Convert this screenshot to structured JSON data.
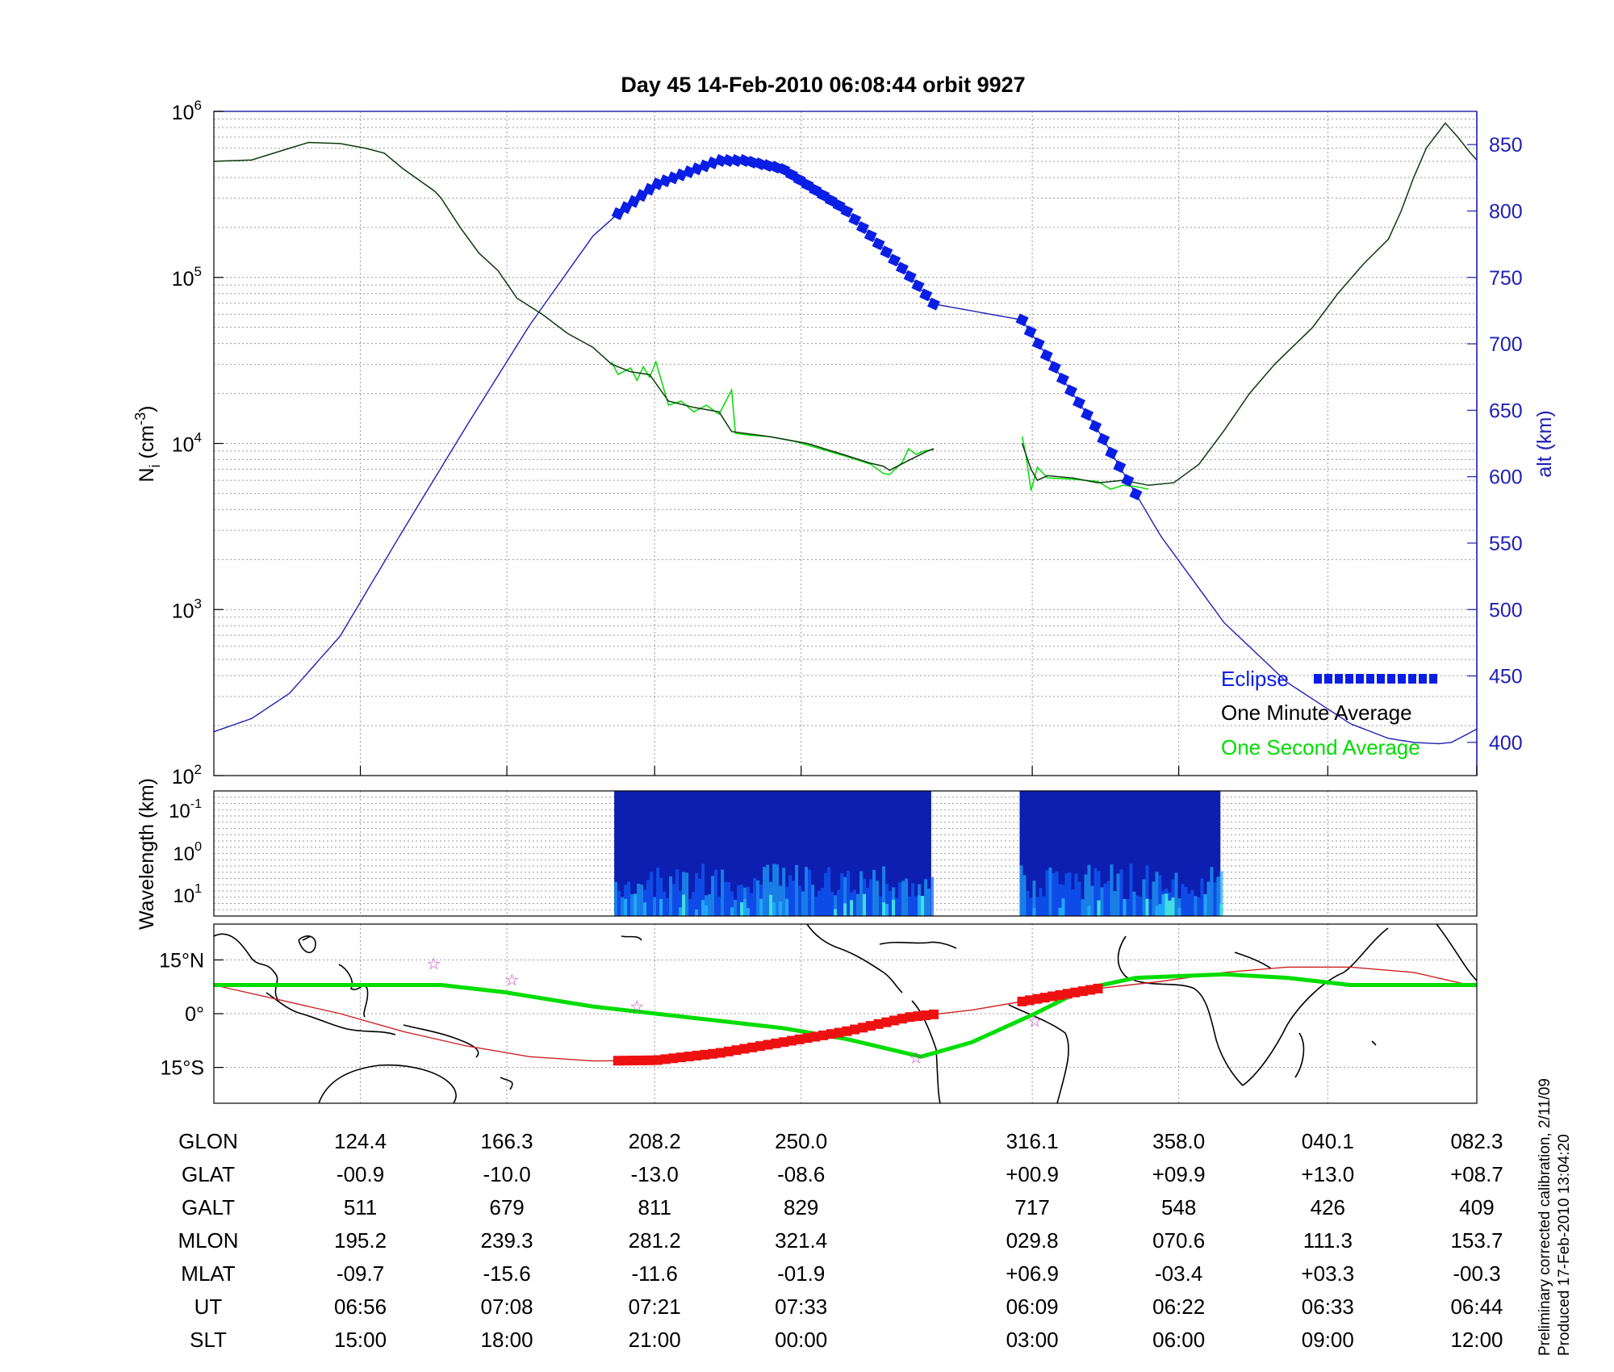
{
  "title": "Day 45  14-Feb-2010 06:08:44   orbit 9927",
  "colors": {
    "alt": "#1f1fb4",
    "avg_minute": "#000000",
    "avg_second": "#00dd00",
    "eclipse": "#0a1ee6",
    "track_eclipse": "#ee1111",
    "orbit_line": "#cc2222",
    "star": "#cc33cc",
    "grid": "#9a9a9a"
  },
  "chart_data": [
    {
      "id": "density",
      "type": "line",
      "ylabel_main": "N",
      "ylabel_sub": "i",
      "ylabel_rest": " (cm",
      "ylabel_sup": "-3",
      "ylabel_end": ")",
      "y_scale": "log",
      "ylim": [
        100,
        1000000
      ],
      "yticks": [
        {
          "base": "10",
          "exp": "2",
          "value": 100
        },
        {
          "base": "10",
          "exp": "3",
          "value": 1000
        },
        {
          "base": "10",
          "exp": "4",
          "value": 10000
        },
        {
          "base": "10",
          "exp": "5",
          "value": 100000
        },
        {
          "base": "10",
          "exp": "6",
          "value": 1000000
        }
      ],
      "y2label": "alt (km)",
      "y2lim": [
        375,
        875
      ],
      "y2ticks": [
        400,
        450,
        500,
        550,
        600,
        650,
        700,
        750,
        800,
        850
      ],
      "xlim": [
        0,
        1
      ],
      "xticks": [
        0.116,
        0.232,
        0.349,
        0.465,
        0.648,
        0.764,
        0.882,
        1.0
      ],
      "grid": true,
      "legend_position": "lower-right",
      "legend": [
        {
          "label": "Eclipse",
          "series": "eclipse",
          "color": "#0a1ee6"
        },
        {
          "label": "One Minute Average",
          "series": "avg_minute",
          "color": "#000000"
        },
        {
          "label": "One Second Average",
          "series": "avg_second",
          "color": "#00dd00"
        }
      ],
      "series": [
        {
          "name": "One Minute Average",
          "id": "avg_minute",
          "axis": "left",
          "segments": [
            [
              [
                0.0,
                500000
              ],
              [
                0.03,
                510000
              ],
              [
                0.06,
                600000
              ],
              [
                0.075,
                650000
              ],
              [
                0.1,
                640000
              ],
              [
                0.12,
                600000
              ],
              [
                0.135,
                560000
              ],
              [
                0.15,
                450000
              ],
              [
                0.175,
                330000
              ],
              [
                0.18,
                300000
              ],
              [
                0.195,
                200000
              ],
              [
                0.21,
                140000
              ],
              [
                0.225,
                110000
              ],
              [
                0.24,
                75000
              ],
              [
                0.26,
                60000
              ],
              [
                0.28,
                46000
              ],
              [
                0.3,
                38000
              ],
              [
                0.315,
                30000
              ],
              [
                0.33,
                27000
              ],
              [
                0.345,
                26000
              ],
              [
                0.36,
                18000
              ],
              [
                0.38,
                16500
              ],
              [
                0.4,
                15500
              ],
              [
                0.41,
                11800
              ],
              [
                0.44,
                11000
              ],
              [
                0.47,
                10000
              ],
              [
                0.5,
                8500
              ],
              [
                0.52,
                7600
              ],
              [
                0.53,
                7300
              ],
              [
                0.535,
                6900
              ],
              [
                0.55,
                7900
              ],
              [
                0.565,
                9000
              ],
              [
                0.57,
                9300
              ]
            ],
            [
              [
                0.64,
                10000
              ],
              [
                0.647,
                7000
              ],
              [
                0.652,
                6000
              ],
              [
                0.66,
                6400
              ],
              [
                0.68,
                6200
              ],
              [
                0.7,
                5800
              ],
              [
                0.72,
                6000
              ],
              [
                0.74,
                5600
              ],
              [
                0.76,
                5800
              ],
              [
                0.78,
                7500
              ],
              [
                0.8,
                12000
              ],
              [
                0.82,
                20000
              ],
              [
                0.84,
                30000
              ],
              [
                0.87,
                50000
              ],
              [
                0.89,
                80000
              ],
              [
                0.91,
                120000
              ],
              [
                0.93,
                170000
              ],
              [
                0.94,
                250000
              ],
              [
                0.95,
                400000
              ],
              [
                0.96,
                600000
              ],
              [
                0.975,
                850000
              ],
              [
                0.985,
                700000
              ],
              [
                0.995,
                560000
              ],
              [
                1.0,
                510000
              ]
            ]
          ]
        },
        {
          "name": "One Second Average",
          "id": "avg_second",
          "axis": "left",
          "segments": [
            [
              [
                0.315,
                31000
              ],
              [
                0.32,
                26000
              ],
              [
                0.33,
                28500
              ],
              [
                0.335,
                24000
              ],
              [
                0.34,
                29000
              ],
              [
                0.345,
                25000
              ],
              [
                0.35,
                31000
              ],
              [
                0.36,
                17000
              ],
              [
                0.37,
                18000
              ],
              [
                0.38,
                15500
              ],
              [
                0.39,
                17000
              ],
              [
                0.4,
                15000
              ],
              [
                0.41,
                21000
              ],
              [
                0.413,
                11500
              ],
              [
                0.425,
                11200
              ],
              [
                0.44,
                11000
              ],
              [
                0.46,
                10300
              ],
              [
                0.5,
                8400
              ],
              [
                0.52,
                7500
              ],
              [
                0.53,
                6600
              ],
              [
                0.535,
                6500
              ],
              [
                0.545,
                7700
              ],
              [
                0.55,
                9300
              ],
              [
                0.556,
                8600
              ],
              [
                0.562,
                9000
              ],
              [
                0.57,
                9200
              ]
            ],
            [
              [
                0.64,
                11000
              ],
              [
                0.643,
                8500
              ],
              [
                0.647,
                5200
              ],
              [
                0.652,
                7200
              ],
              [
                0.66,
                6200
              ],
              [
                0.68,
                6100
              ],
              [
                0.7,
                5900
              ],
              [
                0.71,
                5300
              ],
              [
                0.72,
                5600
              ],
              [
                0.73,
                5500
              ],
              [
                0.74,
                5300
              ]
            ]
          ]
        },
        {
          "name": "alt (km)",
          "id": "alt",
          "axis": "right",
          "x": [
            0.0,
            0.03,
            0.06,
            0.1,
            0.15,
            0.2,
            0.25,
            0.3,
            0.32,
            0.35,
            0.4,
            0.42,
            0.45,
            0.5,
            0.55,
            0.57,
            0.64,
            0.7,
            0.75,
            0.8,
            0.85,
            0.9,
            0.93,
            0.95,
            0.97,
            0.98,
            1.0
          ],
          "y": [
            408,
            418,
            437,
            480,
            560,
            638,
            714,
            781,
            798,
            820,
            838,
            838,
            832,
            801,
            752,
            730,
            718,
            635,
            555,
            490,
            445,
            414,
            403,
            400,
            399,
            400,
            410
          ]
        },
        {
          "name": "Eclipse",
          "id": "eclipse",
          "axis": "right",
          "style": "thick-dashed",
          "segments": [
            {
              "x_start": 0.32,
              "x_end": 0.57
            },
            {
              "x_start": 0.64,
              "x_end": 0.73
            }
          ],
          "legend_sample": true
        }
      ]
    },
    {
      "id": "spectrogram",
      "type": "heatmap",
      "ylabel": "Wavelength (km)",
      "yticks": [
        {
          "base": "10",
          "exp": "-1"
        },
        {
          "base": "10",
          "exp": "0"
        },
        {
          "base": "10",
          "exp": "1"
        }
      ],
      "blocks": [
        {
          "x_start": 0.317,
          "x_end": 0.568
        },
        {
          "x_start": 0.638,
          "x_end": 0.797
        }
      ],
      "colorscale": [
        "#0a1a8a",
        "#0a2fd0",
        "#1060ff",
        "#20a8ff",
        "#40e0e0",
        "#b0f060"
      ]
    },
    {
      "id": "map",
      "type": "line",
      "yticks": [
        {
          "label": "15°N",
          "value": 15
        },
        {
          "label": "0°",
          "value": 0
        },
        {
          "label": "15°S",
          "value": -15
        }
      ],
      "ylim": [
        -25,
        25
      ],
      "series": [
        {
          "id": "track_green",
          "x": [
            0.0,
            0.1,
            0.18,
            0.23,
            0.3,
            0.35,
            0.4,
            0.45,
            0.5,
            0.56,
            0.6,
            0.65,
            0.69,
            0.73,
            0.8,
            0.85,
            0.9,
            0.95,
            1.0
          ],
          "y": [
            8,
            8,
            8,
            6,
            2,
            0,
            -2,
            -4,
            -7,
            -12,
            -8,
            0,
            7,
            10,
            11,
            10,
            8,
            8,
            8
          ]
        },
        {
          "id": "orbit_line",
          "x": [
            0.0,
            0.05,
            0.1,
            0.15,
            0.2,
            0.25,
            0.3,
            0.35,
            0.4,
            0.45,
            0.5,
            0.55,
            0.6,
            0.65,
            0.7,
            0.75,
            0.8,
            0.85,
            0.9,
            0.95,
            1.0
          ],
          "y": [
            8,
            4,
            0,
            -5,
            -9,
            -12,
            -13.2,
            -13,
            -11,
            -8,
            -5,
            -1,
            1,
            4,
            7,
            9,
            11.5,
            13,
            13,
            11.5,
            7.5
          ]
        },
        {
          "id": "track_eclipse",
          "segments": [
            {
              "x_start": 0.32,
              "x_end": 0.57
            },
            {
              "x_start": 0.64,
              "x_end": 0.7
            }
          ]
        }
      ],
      "stars": [
        {
          "x": 0.174,
          "y": 14
        },
        {
          "x": 0.236,
          "y": 9.5
        },
        {
          "x": 0.335,
          "y": 2
        },
        {
          "x": 0.556,
          "y": -12.3
        },
        {
          "x": 0.65,
          "y": -2
        }
      ]
    }
  ],
  "table": {
    "rows": [
      {
        "label": "GLON",
        "values": [
          "124.4",
          "166.3",
          "208.2",
          "250.0",
          "316.1",
          "358.0",
          "040.1",
          "082.3"
        ]
      },
      {
        "label": "GLAT",
        "values": [
          "-00.9",
          "-10.0",
          "-13.0",
          "-08.6",
          "+00.9",
          "+09.9",
          "+13.0",
          "+08.7"
        ]
      },
      {
        "label": "GALT",
        "values": [
          "511",
          "679",
          "811",
          "829",
          "717",
          "548",
          "426",
          "409"
        ]
      },
      {
        "label": "MLON",
        "values": [
          "195.2",
          "239.3",
          "281.2",
          "321.4",
          "029.8",
          "070.6",
          "111.3",
          "153.7"
        ]
      },
      {
        "label": "MLAT",
        "values": [
          "-09.7",
          "-15.6",
          "-11.6",
          "-01.9",
          "+06.9",
          "-03.4",
          "+03.3",
          "-00.3"
        ]
      },
      {
        "label": "UT",
        "values": [
          "06:56",
          "07:08",
          "07:21",
          "07:33",
          "06:09",
          "06:22",
          "06:33",
          "06:44"
        ]
      },
      {
        "label": "SLT",
        "values": [
          "15:00",
          "18:00",
          "21:00",
          "00:00",
          "03:00",
          "06:00",
          "09:00",
          "12:00"
        ]
      }
    ]
  },
  "footnote": {
    "line1": "Preliminary corrected calibration, 2/11/09",
    "line2": "Produced 17-Feb-2010 13:04:20"
  }
}
